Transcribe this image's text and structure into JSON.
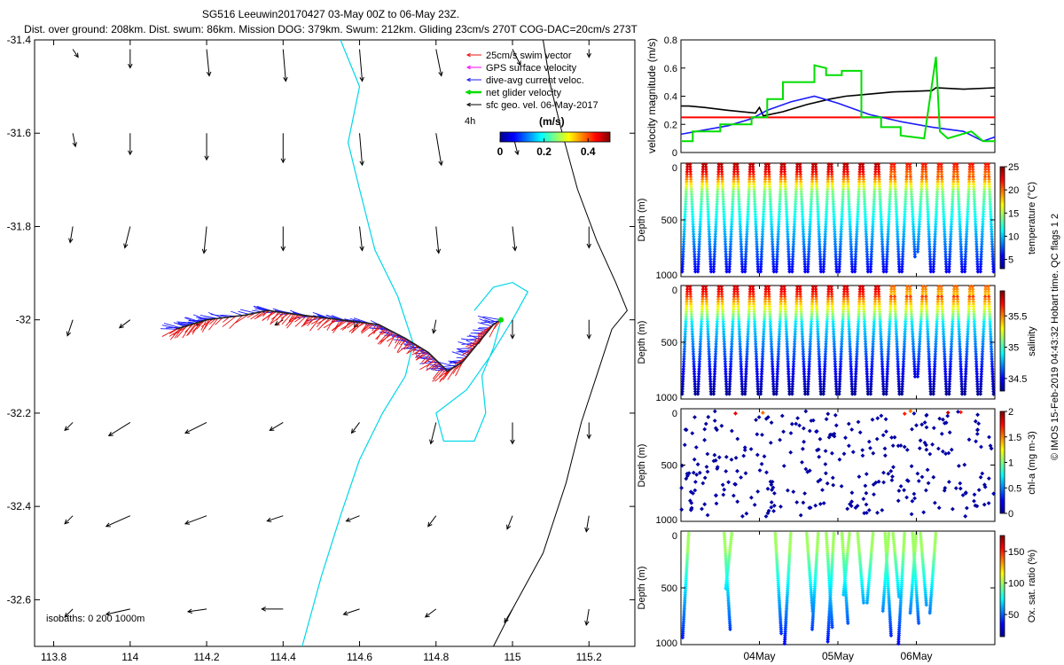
{
  "header": {
    "title_line1": "SG516 Leeuwin20170427 03-May 00Z to 06-May 23Z.",
    "title_line2": "Dist. over ground: 208km. Dist. swum: 86km. Mission DOG: 379km. Swum: 212km. Gliding 23cm/s 270T COG-DAC=20cm/s 273T"
  },
  "side_note": "© IMOS 15-Feb-2019 04:43:32 Hobart time. QC flags 1  2",
  "colors": {
    "swim": "#e81010",
    "gps": "#ff00ff",
    "dac": "#1a1aff",
    "net": "#00dd00",
    "sfc": "#000000",
    "isobath200": "#00d8e8",
    "isobath1000": "#000000",
    "redline": "#ff0000"
  },
  "chart_data": [
    {
      "id": "map",
      "type": "scatter",
      "title": "glider track map",
      "xlim": [
        113.75,
        115.32
      ],
      "ylim": [
        -32.7,
        -31.4
      ],
      "xticks": [
        113.8,
        114,
        114.2,
        114.4,
        114.6,
        114.8,
        115,
        115.2
      ],
      "yticks": [
        -31.4,
        -31.6,
        -31.8,
        -32,
        -32.2,
        -32.4,
        -32.6
      ],
      "xtick_labels": [
        "113.8",
        "114",
        "114.2",
        "114.4",
        "114.6",
        "114.8",
        "115",
        "115.2"
      ],
      "ytick_labels": [
        "-31.4",
        "-31.6",
        "-31.8",
        "-32",
        "-32.2",
        "-32.4",
        "-32.6"
      ],
      "legend": [
        {
          "label": "25cm/s swim vector",
          "color": "#e81010"
        },
        {
          "label": "GPS surface velocity",
          "color": "#ff00ff"
        },
        {
          "label": "dive-avg current veloc.",
          "color": "#1a1aff"
        },
        {
          "label": "net glider velocity",
          "color": "#00dd00"
        },
        {
          "label": "sfc geo. vel. 06-May-2017",
          "color": "#000000"
        }
      ],
      "interval_label": "4h",
      "colorbar": {
        "unit": "(m/s)",
        "ticks": [
          0,
          0.2,
          0.4
        ],
        "tick_labels": [
          "0",
          "0.2",
          "0.4"
        ],
        "range": [
          0,
          0.5
        ]
      },
      "isobath_label": "isobaths: 0   200   1000m",
      "track": [
        [
          114.12,
          -32.02
        ],
        [
          114.2,
          -32.0
        ],
        [
          114.3,
          -31.99
        ],
        [
          114.36,
          -31.98
        ],
        [
          114.45,
          -31.99
        ],
        [
          114.55,
          -32.0
        ],
        [
          114.65,
          -32.01
        ],
        [
          114.72,
          -32.04
        ],
        [
          114.78,
          -32.07
        ],
        [
          114.83,
          -32.11
        ],
        [
          114.87,
          -32.09
        ],
        [
          114.91,
          -32.05
        ],
        [
          114.95,
          -32.01
        ],
        [
          114.97,
          -32.0
        ]
      ],
      "geo_vectors": [
        {
          "lon": 113.85,
          "lat": -31.42,
          "u": 0.02,
          "v": -0.03
        },
        {
          "lon": 114.0,
          "lat": -31.42,
          "u": 0.0,
          "v": -0.07
        },
        {
          "lon": 114.2,
          "lat": -31.42,
          "u": 0.01,
          "v": -0.1
        },
        {
          "lon": 114.4,
          "lat": -31.42,
          "u": 0.01,
          "v": -0.12
        },
        {
          "lon": 114.6,
          "lat": -31.42,
          "u": 0.01,
          "v": -0.12
        },
        {
          "lon": 114.8,
          "lat": -31.42,
          "u": 0.02,
          "v": -0.1
        },
        {
          "lon": 115.0,
          "lat": -31.42,
          "u": 0.03,
          "v": -0.06
        },
        {
          "lon": 115.2,
          "lat": -31.42,
          "u": 0.0,
          "v": -0.03
        },
        {
          "lon": 113.85,
          "lat": -31.6,
          "u": 0.01,
          "v": -0.05
        },
        {
          "lon": 114.0,
          "lat": -31.6,
          "u": 0.0,
          "v": -0.08
        },
        {
          "lon": 114.2,
          "lat": -31.6,
          "u": 0.0,
          "v": -0.1
        },
        {
          "lon": 114.4,
          "lat": -31.6,
          "u": 0.0,
          "v": -0.11
        },
        {
          "lon": 114.6,
          "lat": -31.6,
          "u": 0.01,
          "v": -0.12
        },
        {
          "lon": 114.8,
          "lat": -31.6,
          "u": 0.02,
          "v": -0.12
        },
        {
          "lon": 115.0,
          "lat": -31.6,
          "u": 0.02,
          "v": -0.08
        },
        {
          "lon": 115.2,
          "lat": -31.6,
          "u": 0.0,
          "v": -0.03
        },
        {
          "lon": 113.85,
          "lat": -31.8,
          "u": -0.01,
          "v": -0.06
        },
        {
          "lon": 114.0,
          "lat": -31.8,
          "u": -0.02,
          "v": -0.08
        },
        {
          "lon": 114.2,
          "lat": -31.8,
          "u": -0.01,
          "v": -0.1
        },
        {
          "lon": 114.4,
          "lat": -31.8,
          "u": 0.0,
          "v": -0.09
        },
        {
          "lon": 114.6,
          "lat": -31.8,
          "u": 0.01,
          "v": -0.09
        },
        {
          "lon": 114.8,
          "lat": -31.8,
          "u": 0.01,
          "v": -0.1
        },
        {
          "lon": 115.0,
          "lat": -31.8,
          "u": 0.01,
          "v": -0.09
        },
        {
          "lon": 115.2,
          "lat": -31.8,
          "u": 0.0,
          "v": -0.08
        },
        {
          "lon": 113.85,
          "lat": -32.0,
          "u": -0.02,
          "v": -0.06
        },
        {
          "lon": 114.0,
          "lat": -32.0,
          "u": -0.04,
          "v": -0.03
        },
        {
          "lon": 114.2,
          "lat": -32.0,
          "u": -0.04,
          "v": -0.02
        },
        {
          "lon": 114.4,
          "lat": -32.0,
          "u": -0.03,
          "v": -0.02
        },
        {
          "lon": 114.6,
          "lat": -32.0,
          "u": -0.02,
          "v": -0.03
        },
        {
          "lon": 114.8,
          "lat": -32.0,
          "u": -0.01,
          "v": -0.05
        },
        {
          "lon": 115.0,
          "lat": -32.0,
          "u": 0.0,
          "v": -0.07
        },
        {
          "lon": 115.2,
          "lat": -32.0,
          "u": 0.0,
          "v": -0.07
        },
        {
          "lon": 113.85,
          "lat": -32.22,
          "u": -0.03,
          "v": -0.03
        },
        {
          "lon": 114.0,
          "lat": -32.22,
          "u": -0.08,
          "v": -0.05
        },
        {
          "lon": 114.2,
          "lat": -32.22,
          "u": -0.08,
          "v": -0.04
        },
        {
          "lon": 114.4,
          "lat": -32.22,
          "u": -0.05,
          "v": -0.03
        },
        {
          "lon": 114.6,
          "lat": -32.22,
          "u": -0.03,
          "v": -0.04
        },
        {
          "lon": 114.8,
          "lat": -32.22,
          "u": -0.02,
          "v": -0.08
        },
        {
          "lon": 115.0,
          "lat": -32.22,
          "u": 0.0,
          "v": -0.08
        },
        {
          "lon": 115.2,
          "lat": -32.22,
          "u": 0.0,
          "v": -0.06
        },
        {
          "lon": 113.85,
          "lat": -32.42,
          "u": -0.03,
          "v": -0.03
        },
        {
          "lon": 114.0,
          "lat": -32.42,
          "u": -0.09,
          "v": -0.04
        },
        {
          "lon": 114.2,
          "lat": -32.42,
          "u": -0.08,
          "v": -0.03
        },
        {
          "lon": 114.4,
          "lat": -32.42,
          "u": -0.06,
          "v": -0.02
        },
        {
          "lon": 114.6,
          "lat": -32.42,
          "u": -0.05,
          "v": -0.02
        },
        {
          "lon": 114.8,
          "lat": -32.42,
          "u": -0.03,
          "v": -0.04
        },
        {
          "lon": 115.0,
          "lat": -32.42,
          "u": -0.02,
          "v": -0.05
        },
        {
          "lon": 115.2,
          "lat": -32.42,
          "u": -0.01,
          "v": -0.06
        },
        {
          "lon": 113.85,
          "lat": -32.62,
          "u": -0.03,
          "v": -0.03
        },
        {
          "lon": 114.0,
          "lat": -32.62,
          "u": -0.09,
          "v": -0.02
        },
        {
          "lon": 114.2,
          "lat": -32.62,
          "u": -0.07,
          "v": -0.01
        },
        {
          "lon": 114.4,
          "lat": -32.62,
          "u": -0.08,
          "v": 0.0
        },
        {
          "lon": 114.6,
          "lat": -32.62,
          "u": -0.06,
          "v": -0.02
        },
        {
          "lon": 114.8,
          "lat": -32.62,
          "u": -0.04,
          "v": -0.03
        },
        {
          "lon": 115.0,
          "lat": -32.62,
          "u": -0.03,
          "v": -0.05
        },
        {
          "lon": 115.2,
          "lat": -32.62,
          "u": -0.01,
          "v": -0.06
        }
      ],
      "isobath_200": [
        [
          [
            114.55,
            -31.4
          ],
          [
            114.6,
            -31.5
          ],
          [
            114.57,
            -31.62
          ],
          [
            114.6,
            -31.72
          ],
          [
            114.64,
            -31.85
          ],
          [
            114.7,
            -31.95
          ],
          [
            114.74,
            -32.05
          ],
          [
            114.72,
            -32.12
          ],
          [
            114.66,
            -32.2
          ],
          [
            114.6,
            -32.3
          ],
          [
            114.55,
            -32.42
          ],
          [
            114.5,
            -32.55
          ],
          [
            114.45,
            -32.7
          ]
        ],
        [
          [
            114.9,
            -31.98
          ],
          [
            114.95,
            -31.93
          ],
          [
            115.0,
            -31.92
          ],
          [
            115.04,
            -31.94
          ],
          [
            115.0,
            -32.0
          ],
          [
            114.94,
            -32.08
          ],
          [
            114.88,
            -32.15
          ],
          [
            114.8,
            -32.2
          ],
          [
            114.82,
            -32.26
          ],
          [
            114.9,
            -32.26
          ],
          [
            114.93,
            -32.2
          ],
          [
            114.92,
            -32.12
          ],
          [
            114.95,
            -32.06
          ],
          [
            114.97,
            -32.0
          ]
        ]
      ],
      "isobath_1000": [
        [
          [
            115.08,
            -31.4
          ],
          [
            115.1,
            -31.5
          ],
          [
            115.13,
            -31.6
          ],
          [
            115.17,
            -31.72
          ],
          [
            115.22,
            -31.83
          ],
          [
            115.27,
            -31.92
          ],
          [
            115.3,
            -31.98
          ],
          [
            115.26,
            -32.02
          ],
          [
            115.22,
            -32.12
          ],
          [
            115.18,
            -32.22
          ],
          [
            115.14,
            -32.35
          ],
          [
            115.08,
            -32.5
          ],
          [
            115.0,
            -32.62
          ],
          [
            114.95,
            -32.7
          ]
        ]
      ]
    },
    {
      "id": "velocity",
      "type": "line",
      "ylabel": "velocity magnitude (m/s)",
      "ylim": [
        0,
        0.8
      ],
      "yticks": [
        0,
        0.2,
        0.4,
        0.6,
        0.8
      ],
      "ytick_labels": [
        "0",
        "0.2",
        "0.4",
        "0.6",
        "0.8"
      ],
      "xlim": [
        3.0,
        7.0
      ],
      "threshold": 0.25,
      "series": [
        {
          "name": "sfc geo. speed",
          "color": "#000000",
          "x": [
            3.0,
            3.1,
            3.3,
            3.6,
            3.95,
            4.0,
            4.05,
            4.3,
            4.6,
            4.9,
            5.1,
            5.3,
            5.7,
            6.2,
            6.25,
            6.6,
            7.0
          ],
          "y": [
            0.33,
            0.33,
            0.32,
            0.3,
            0.28,
            0.32,
            0.26,
            0.29,
            0.34,
            0.38,
            0.4,
            0.41,
            0.43,
            0.44,
            0.46,
            0.45,
            0.46
          ]
        },
        {
          "name": "dive-avg current",
          "color": "#1a1aff",
          "x": [
            3.0,
            3.2,
            3.6,
            3.9,
            4.1,
            4.4,
            4.7,
            5.0,
            5.4,
            5.8,
            6.2,
            6.6,
            6.85,
            7.0
          ],
          "y": [
            0.13,
            0.15,
            0.19,
            0.24,
            0.3,
            0.36,
            0.4,
            0.35,
            0.27,
            0.22,
            0.18,
            0.15,
            0.08,
            0.11
          ]
        },
        {
          "name": "net glider velocity",
          "color": "#00dd00",
          "x": [
            3.0,
            3.15,
            3.15,
            3.5,
            3.5,
            3.9,
            3.9,
            4.1,
            4.1,
            4.3,
            4.3,
            4.7,
            4.7,
            4.85,
            4.85,
            5.05,
            5.05,
            5.3,
            5.3,
            5.55,
            5.55,
            5.8,
            5.8,
            6.1,
            6.25,
            6.3,
            6.4,
            6.7,
            6.85,
            7.0
          ],
          "y": [
            0.08,
            0.08,
            0.15,
            0.15,
            0.2,
            0.2,
            0.25,
            0.25,
            0.38,
            0.38,
            0.5,
            0.5,
            0.62,
            0.6,
            0.55,
            0.55,
            0.58,
            0.58,
            0.25,
            0.25,
            0.18,
            0.18,
            0.12,
            0.1,
            0.68,
            0.15,
            0.1,
            0.15,
            0.08,
            0.08
          ]
        }
      ]
    },
    {
      "id": "temperature",
      "type": "scatter",
      "ylabel": "Depth (m)",
      "clabel": "temperature (°C)",
      "ylim": [
        0,
        1000
      ],
      "yticks": [
        0,
        500,
        1000
      ],
      "ytick_labels": [
        "0",
        "500",
        "1000"
      ],
      "crange": [
        3,
        25
      ],
      "cticks": [
        5,
        10,
        15,
        20,
        25
      ],
      "ctick_labels": [
        "5",
        "10",
        "15",
        "20",
        "25"
      ],
      "dive_start": 3.0,
      "dive_end": 7.0,
      "dive_count": 40,
      "max_depth": 1000
    },
    {
      "id": "salinity",
      "type": "scatter",
      "ylabel": "Depth (m)",
      "clabel": "salinity",
      "ylim": [
        0,
        1000
      ],
      "yticks": [
        0,
        500,
        1000
      ],
      "ytick_labels": [
        "0",
        "500",
        "1000"
      ],
      "crange": [
        34.3,
        35.9
      ],
      "cticks": [
        34.5,
        35,
        35.5
      ],
      "ctick_labels": [
        "34.5",
        "35",
        "35.5"
      ],
      "dive_start": 3.0,
      "dive_end": 7.0,
      "dive_count": 40,
      "max_depth": 1000
    },
    {
      "id": "chla",
      "type": "scatter",
      "ylabel": "Depth (m)",
      "clabel": "chl-a (mg m-3)",
      "ylim": [
        0,
        1000
      ],
      "yticks": [
        0,
        500,
        1000
      ],
      "ytick_labels": [
        "0",
        "500",
        "1000"
      ],
      "crange": [
        0,
        2
      ],
      "cticks": [
        0,
        0.5,
        1,
        1.5,
        2
      ],
      "ctick_labels": [
        "0",
        "0.5",
        "1",
        "1.5",
        "2"
      ],
      "dive_start": 3.0,
      "dive_end": 7.0,
      "dive_count": 40,
      "max_depth": 1000
    },
    {
      "id": "oxygen",
      "type": "scatter",
      "ylabel": "Depth (m)",
      "clabel": "Ox. sat. ratio (%)",
      "ylim": [
        0,
        1000
      ],
      "yticks": [
        0,
        500,
        1000
      ],
      "ytick_labels": [
        "0",
        "500",
        "1000"
      ],
      "crange": [
        15,
        175
      ],
      "cticks": [
        50,
        100,
        150
      ],
      "ctick_labels": [
        "50",
        "100",
        "150"
      ],
      "xticks": [
        4.0,
        5.0,
        6.0
      ],
      "xtick_labels": [
        "04May",
        "05May",
        "06May"
      ],
      "dives": [
        3.1,
        3.55,
        3.65,
        4.2,
        4.4,
        4.6,
        4.75,
        4.85,
        4.95,
        5.05,
        5.15,
        5.25,
        5.45,
        5.6,
        5.65,
        5.7,
        5.85,
        5.95,
        6.0,
        6.05,
        6.25
      ]
    }
  ]
}
